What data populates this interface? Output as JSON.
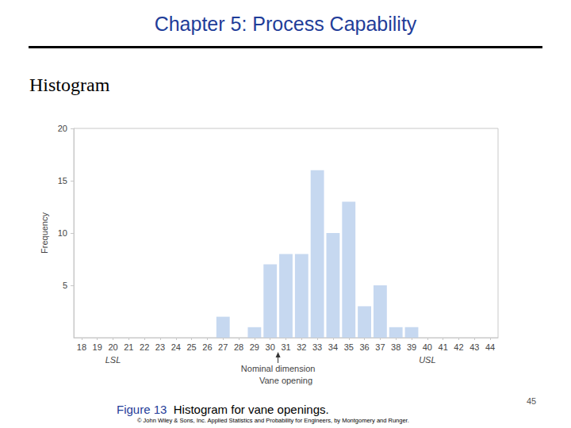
{
  "page": {
    "header": "Chapter 5: Process Capability",
    "heading": "Histogram",
    "caption_label": "Figure 13",
    "caption": "Histogram for vane openings.",
    "credit": "© John Wiley & Sons, Inc. Applied Statistics and Probability for Engineers, by Montgomery and Runger.",
    "page_number": 45
  },
  "chart_data": {
    "type": "bar",
    "x": [
      27,
      28,
      29,
      30,
      31,
      32,
      33,
      34,
      35,
      36,
      37,
      38,
      39
    ],
    "values": [
      2,
      0,
      1,
      7,
      8,
      8,
      16,
      10,
      13,
      3,
      5,
      1,
      1
    ],
    "color": "#c6d8f0",
    "xlabel": "Vane opening",
    "ylabel": "Frequency",
    "xlim": [
      17.5,
      44.5
    ],
    "xticks": [
      18,
      19,
      20,
      21,
      22,
      23,
      24,
      25,
      26,
      27,
      28,
      29,
      30,
      31,
      32,
      33,
      34,
      35,
      36,
      37,
      38,
      39,
      40,
      41,
      42,
      43,
      44
    ],
    "ylim": [
      0,
      20
    ],
    "yticks": [
      5,
      10,
      15,
      20
    ],
    "grid": false,
    "annotations": [
      {
        "text": "LSL",
        "x": 20
      },
      {
        "text": "USL",
        "x": 40
      },
      {
        "text": "Nominal dimension",
        "x": 30.5,
        "marker": "arrow"
      }
    ]
  }
}
